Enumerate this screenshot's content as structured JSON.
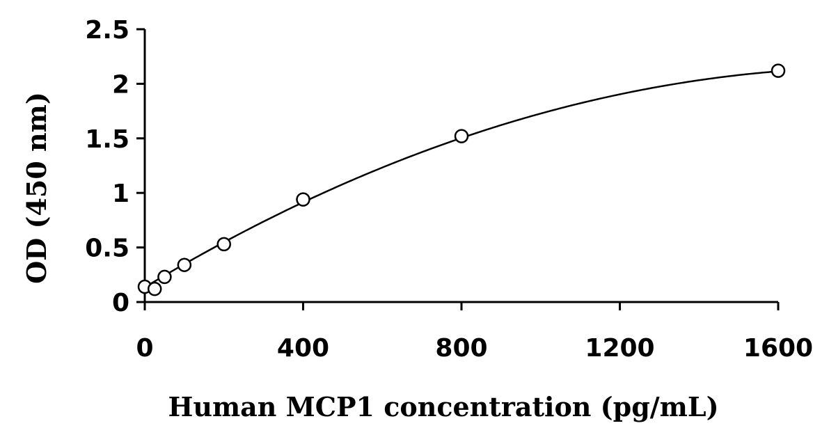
{
  "chart_data": {
    "type": "scatter",
    "title": "",
    "xlabel": "Human MCP1 concentration (pg/mL)",
    "ylabel": "OD (450 nm)",
    "xlim": [
      0,
      1600
    ],
    "ylim": [
      0,
      2.5
    ],
    "x_ticks": [
      "0",
      "400",
      "800",
      "1200",
      "1600"
    ],
    "y_ticks": [
      "0",
      "0.5",
      "1",
      "1.5",
      "2",
      "2.5"
    ],
    "grid": false,
    "legend": "none",
    "series": [
      {
        "marker": "open-circle",
        "points": [
          {
            "x": 0,
            "y": 0.14
          },
          {
            "x": 25,
            "y": 0.12
          },
          {
            "x": 50,
            "y": 0.23
          },
          {
            "x": 100,
            "y": 0.34
          },
          {
            "x": 200,
            "y": 0.53
          },
          {
            "x": 400,
            "y": 0.94
          },
          {
            "x": 800,
            "y": 1.52
          },
          {
            "x": 1600,
            "y": 2.12
          }
        ],
        "fit_curve": {
          "type": "quadratic",
          "points": [
            {
              "x": 0,
              "y": 0.15
            },
            {
              "x": 200,
              "y": 0.53
            },
            {
              "x": 400,
              "y": 0.91
            },
            {
              "x": 800,
              "y": 1.51
            },
            {
              "x": 1200,
              "y": 1.91
            },
            {
              "x": 1600,
              "y": 2.11
            }
          ]
        }
      }
    ]
  }
}
